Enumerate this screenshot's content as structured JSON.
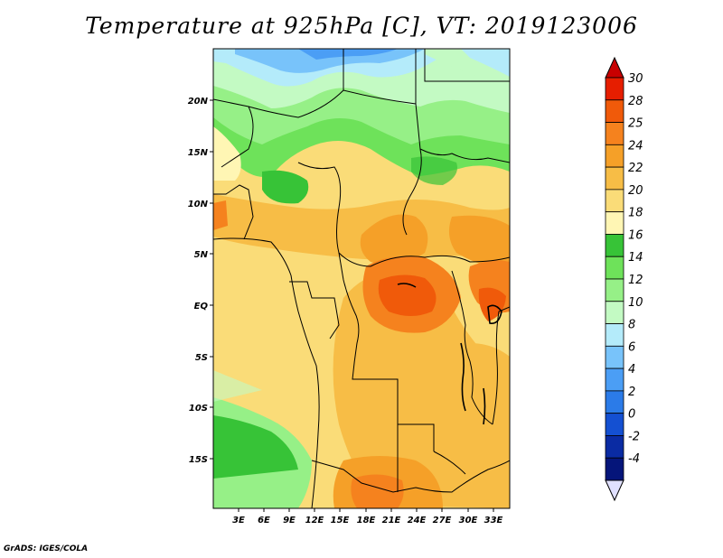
{
  "title": "Temperature at 925hPa [C], VT: 2019123006",
  "credit": "GrADS: IGES/COLA",
  "lat_labels": [
    "20N",
    "15N",
    "10N",
    "5N",
    "EQ",
    "5S",
    "10S",
    "15S"
  ],
  "lon_labels": [
    "3E",
    "6E",
    "9E",
    "12E",
    "15E",
    "18E",
    "21E",
    "24E",
    "27E",
    "30E",
    "33E"
  ],
  "colorbar": {
    "labels": [
      "30",
      "28",
      "25",
      "24",
      "22",
      "20",
      "18",
      "16",
      "14",
      "12",
      "10",
      "8",
      "6",
      "4",
      "2",
      "0",
      "-2",
      "-4"
    ],
    "colors": [
      "#e61e00",
      "#f05a0a",
      "#f5821e",
      "#f5a028",
      "#f7bd46",
      "#fadc78",
      "#fff6b4",
      "#37c337",
      "#6ee25a",
      "#96f087",
      "#c3fac3",
      "#b4ebfa",
      "#78c3fa",
      "#4b9ef5",
      "#2b7be8",
      "#1450d2",
      "#0a2ba3",
      "#05157a"
    ],
    "arrow_top_color": "#c80000",
    "arrow_bottom_color": "#e0e0ff"
  }
}
